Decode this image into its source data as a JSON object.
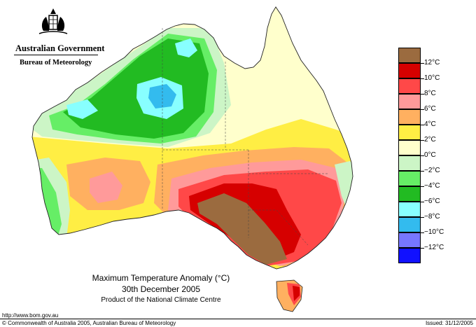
{
  "agency": {
    "government": "Australian Government",
    "bureau": "Bureau of Meteorology"
  },
  "map": {
    "title": "Maximum Temperature Anomaly (°C)",
    "date": "30th December 2005",
    "product": "Product of the National Climate Centre"
  },
  "legend": {
    "labels": [
      "12°C",
      "10°C",
      "8°C",
      "6°C",
      "4°C",
      "2°C",
      "0°C",
      "−2°C",
      "−4°C",
      "−6°C",
      "−8°C",
      "−10°C",
      "−12°C"
    ],
    "colors": [
      "#9b6b3f",
      "#d60000",
      "#ff4848",
      "#ff9a9a",
      "#ffb060",
      "#ffee44",
      "#ffffcc",
      "#ccf5c6",
      "#66ee66",
      "#22bb22",
      "#88ffff",
      "#33bbee",
      "#7777ff",
      "#1111ff"
    ]
  },
  "footer": {
    "url": "http://www.bom.gov.au",
    "copyright": "© Commonwealth of Australia 2005, Australian Bureau of Meteorology",
    "issued": "Issued: 31/12/2005"
  }
}
